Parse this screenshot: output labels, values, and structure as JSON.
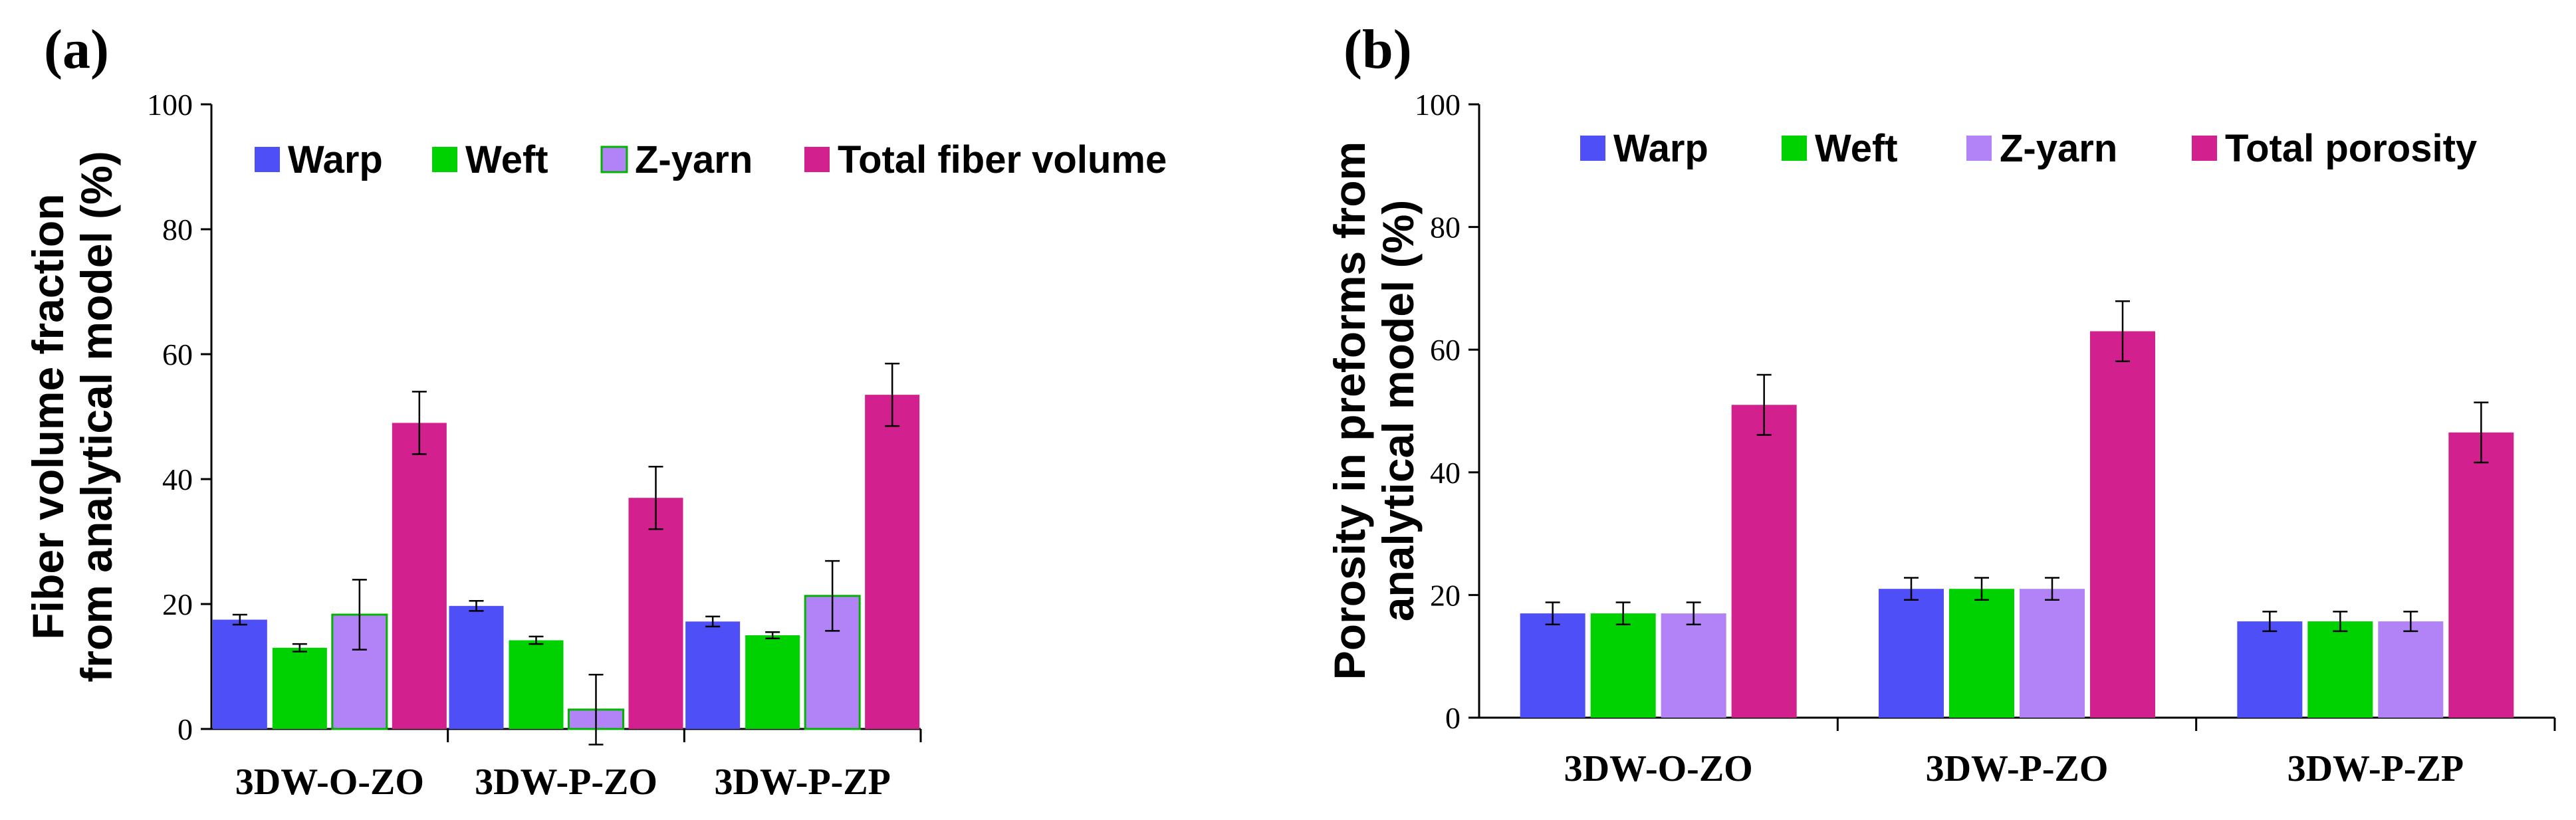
{
  "chart_data": [
    {
      "panel": "(a)",
      "type": "bar",
      "categories": [
        "3DW-O-ZO",
        "3DW-P-ZO",
        "3DW-P-ZP"
      ],
      "ylabel": [
        "Fiber volume fraction",
        "from analytical model (%)"
      ],
      "ylim": [
        0,
        100
      ],
      "yticks": [
        0,
        20,
        40,
        60,
        80,
        100
      ],
      "legend_position": "top",
      "series": [
        {
          "name": "Warp",
          "color": "#4f4ff7",
          "values": [
            17.5,
            19.7,
            17.2
          ],
          "errors": [
            0.8,
            0.8,
            0.8
          ]
        },
        {
          "name": "Weft",
          "color": "#00d100",
          "values": [
            13.0,
            14.2,
            15.0
          ],
          "errors": [
            0.6,
            0.6,
            0.5
          ]
        },
        {
          "name": "Z-yarn",
          "color": "#b183f7",
          "values": [
            18.3,
            3.1,
            21.3
          ],
          "errors": [
            5.6,
            5.6,
            5.6
          ],
          "edge": "#00b400"
        },
        {
          "name": "Total fiber volume",
          "color": "#d2208e",
          "values": [
            49.0,
            37.0,
            53.5
          ],
          "errors": [
            5.0,
            5.0,
            5.0
          ]
        }
      ]
    },
    {
      "panel": "(b)",
      "type": "bar",
      "categories": [
        "3DW-O-ZO",
        "3DW-P-ZO",
        "3DW-P-ZP"
      ],
      "ylabel": [
        "Porosity in preforms from",
        "analytical model (%)"
      ],
      "ylim": [
        0,
        100
      ],
      "yticks": [
        0,
        20,
        40,
        60,
        80,
        100
      ],
      "legend_position": "top",
      "series": [
        {
          "name": "Warp",
          "color": "#4f4ff7",
          "values": [
            17.0,
            21.0,
            15.7
          ],
          "errors": [
            1.8,
            1.8,
            1.6
          ]
        },
        {
          "name": "Weft",
          "color": "#00d100",
          "values": [
            17.0,
            21.0,
            15.7
          ],
          "errors": [
            1.8,
            1.8,
            1.6
          ]
        },
        {
          "name": "Z-yarn",
          "color": "#b183f7",
          "values": [
            17.0,
            21.0,
            15.7
          ],
          "errors": [
            1.8,
            1.8,
            1.6
          ]
        },
        {
          "name": "Total porosity",
          "color": "#d2208e",
          "values": [
            51.0,
            63.0,
            46.5
          ],
          "errors": [
            4.9,
            4.9,
            4.9
          ]
        }
      ]
    }
  ]
}
